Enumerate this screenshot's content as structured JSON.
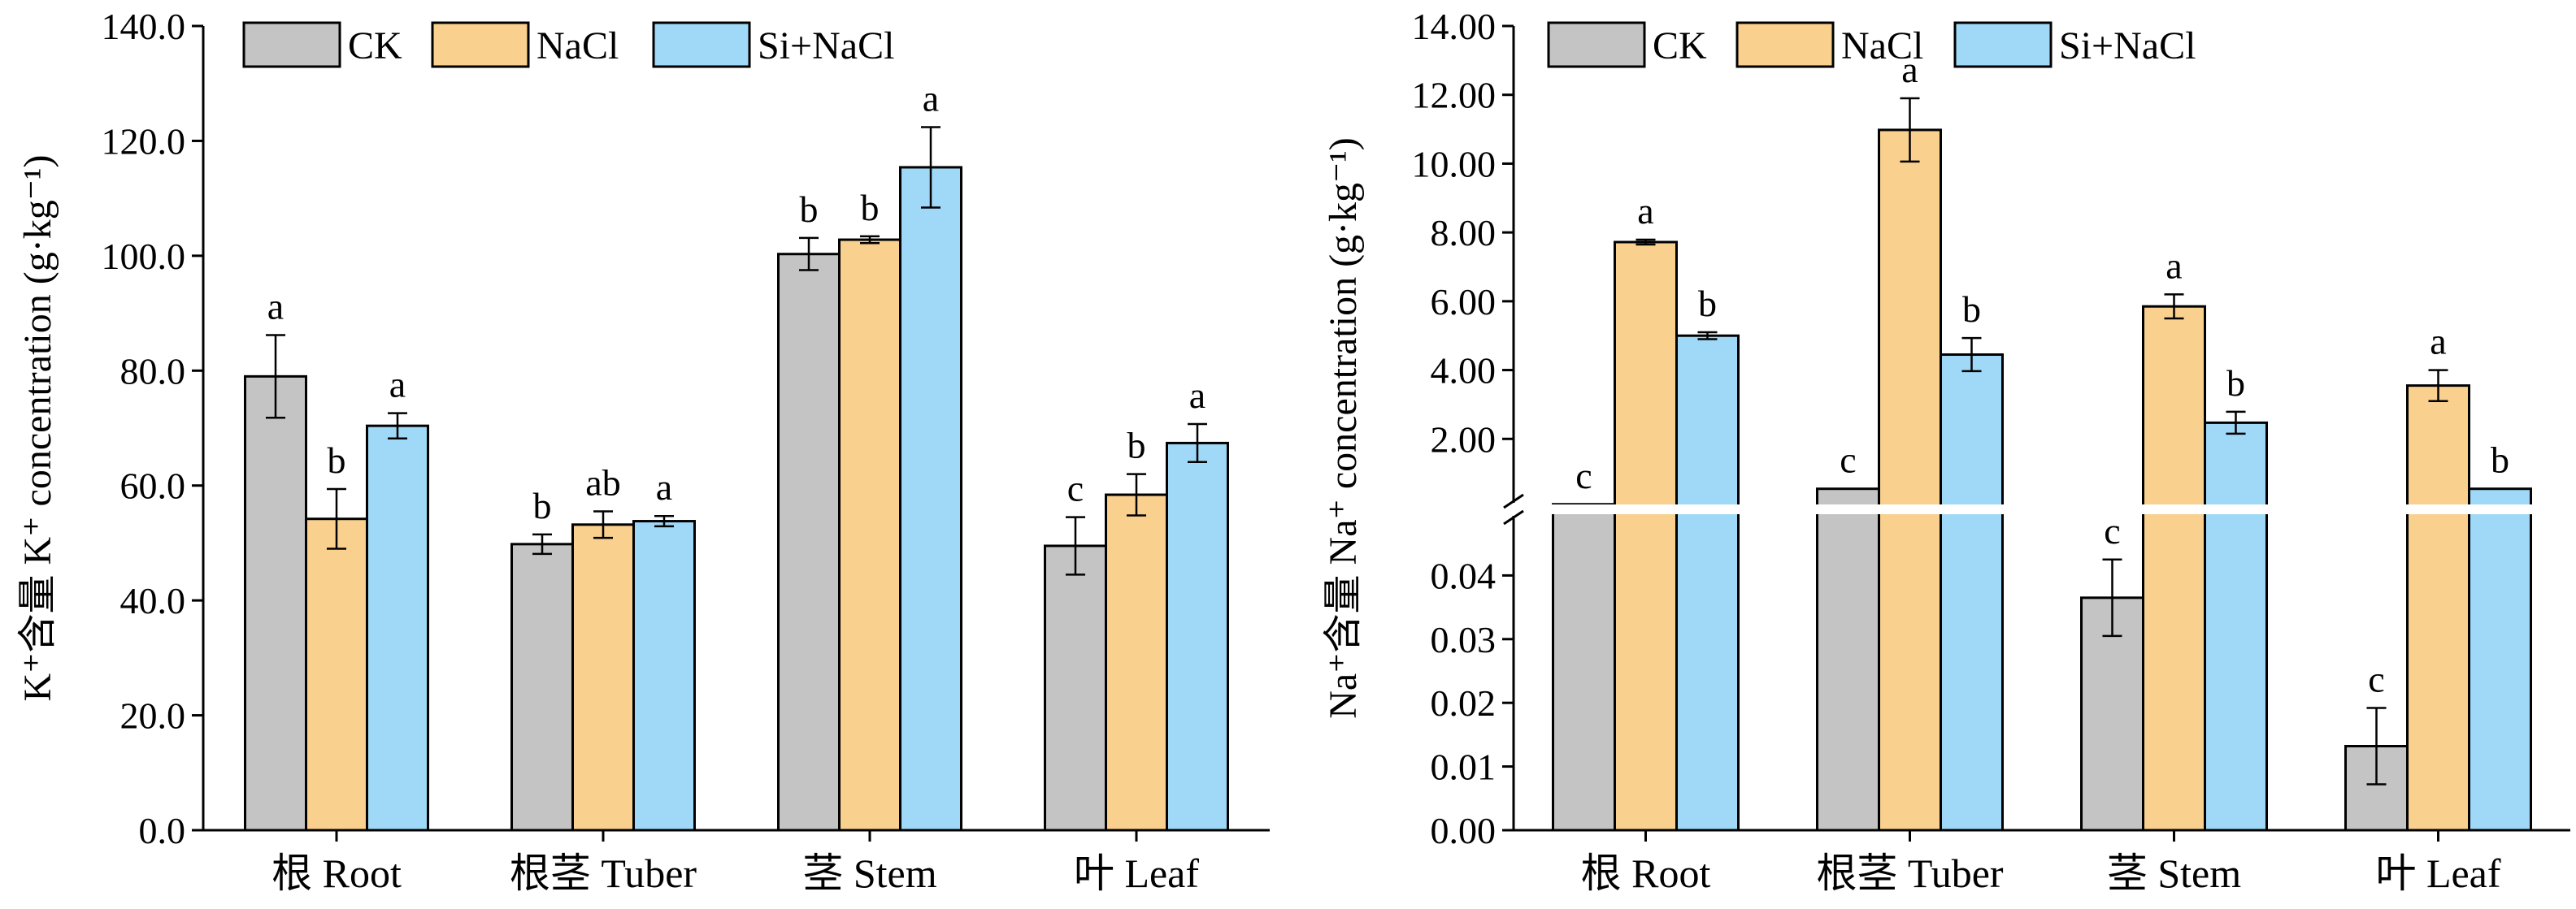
{
  "colors": {
    "CK": "#c4c4c4",
    "NaCl": "#f9d08e",
    "Si+NaCl": "#9fd9f7",
    "axis": "#000000",
    "break": "#ffffff"
  },
  "chart_data": [
    {
      "type": "bar",
      "ylabel": "K⁺含量 K⁺ concentration (g·kg⁻¹)",
      "xlabel": "",
      "categories": [
        "根 Root",
        "根茎 Tuber",
        "茎 Stem",
        "叶 Leaf"
      ],
      "ylim": [
        0,
        140
      ],
      "yticks": [
        "0.0",
        "20.0",
        "40.0",
        "60.0",
        "80.0",
        "100.0",
        "120.0",
        "140.0"
      ],
      "legend": {
        "placement": "top-left",
        "entries": [
          "CK",
          "NaCl",
          "Si+NaCl"
        ]
      },
      "grid": false,
      "series": [
        {
          "name": "CK",
          "values": [
            79,
            49.8,
            100.3,
            49.5
          ],
          "errors": [
            7.2,
            1.7,
            2.8,
            5.0
          ],
          "labels": [
            "a",
            "b",
            "b",
            "c"
          ]
        },
        {
          "name": "NaCl",
          "values": [
            54.2,
            53.2,
            102.8,
            58.4
          ],
          "errors": [
            5.2,
            2.3,
            0.6,
            3.6
          ],
          "labels": [
            "b",
            "ab",
            "b",
            "b"
          ]
        },
        {
          "name": "Si+NaCl",
          "values": [
            70.4,
            53.8,
            115.4,
            67.4
          ],
          "errors": [
            2.2,
            0.9,
            7.0,
            3.3
          ],
          "labels": [
            "a",
            "a",
            "a",
            "a"
          ]
        }
      ]
    },
    {
      "type": "bar",
      "ylabel": "Na⁺含量 Na⁺ concentration (g·kg⁻¹)",
      "xlabel": "",
      "categories": [
        "根 Root",
        "根茎 Tuber",
        "茎 Stem",
        "叶 Leaf"
      ],
      "axis_break": true,
      "lower_ylim": [
        0,
        0.05
      ],
      "upper_ylim": [
        0,
        14
      ],
      "lower_yticks": [
        "0.00",
        "0.01",
        "0.02",
        "0.03",
        "0.04"
      ],
      "upper_yticks": [
        "2.00",
        "4.00",
        "6.00",
        "8.00",
        "10.00",
        "12.00",
        "14.00"
      ],
      "legend": {
        "placement": "top-left",
        "entries": [
          "CK",
          "NaCl",
          "Si+NaCl"
        ]
      },
      "grid": false,
      "series": [
        {
          "name": "CK",
          "values": [
            0.1,
            0.55,
            0.0365,
            0.0132
          ],
          "errors": [
            0,
            0,
            0.006,
            0.006
          ],
          "labels": [
            "c",
            "c",
            "c",
            "c"
          ]
        },
        {
          "name": "NaCl",
          "values": [
            7.72,
            10.98,
            5.85,
            3.55
          ],
          "errors": [
            0.07,
            0.92,
            0.35,
            0.45
          ],
          "labels": [
            "a",
            "a",
            "a",
            "a"
          ]
        },
        {
          "name": "Si+NaCl",
          "values": [
            5.0,
            4.45,
            2.47,
            0.55
          ],
          "errors": [
            0.1,
            0.48,
            0.32,
            0
          ],
          "labels": [
            "b",
            "b",
            "b",
            "b"
          ]
        }
      ]
    }
  ]
}
